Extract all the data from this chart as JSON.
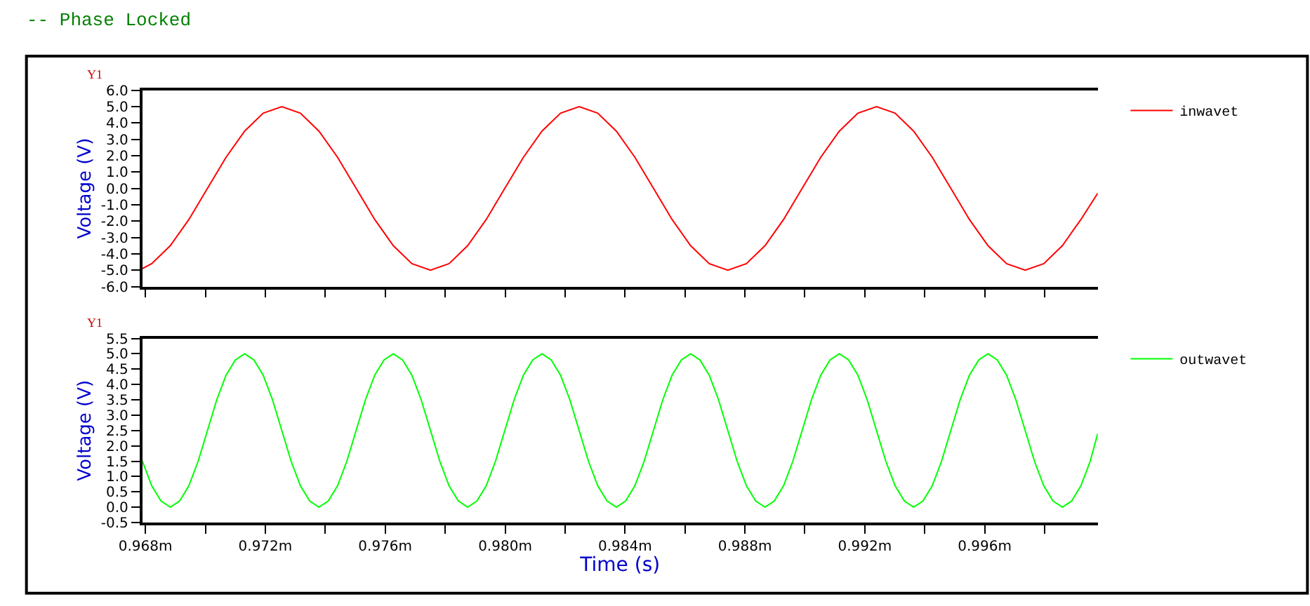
{
  "chart_data": [
    {
      "type": "line",
      "title": "-- Phase Locked",
      "ylabel": "Voltage (V)",
      "annotations": [
        "Y1"
      ],
      "series": [
        {
          "name": "inwavet",
          "color": "#ff0000",
          "x": [
            0.9679,
            0.96821,
            0.96883,
            0.96945,
            0.97007,
            0.97069,
            0.97131,
            0.97193,
            0.97255,
            0.97317,
            0.97379,
            0.97441,
            0.97503,
            0.97565,
            0.97627,
            0.97689,
            0.97751,
            0.97813,
            0.97875,
            0.97937,
            0.97999,
            0.98061,
            0.98123,
            0.98185,
            0.98247,
            0.98309,
            0.98371,
            0.98433,
            0.98495,
            0.98557,
            0.98619,
            0.98681,
            0.98743,
            0.98805,
            0.98867,
            0.98929,
            0.98991,
            0.99053,
            0.99115,
            0.99177,
            0.99239,
            0.99301,
            0.99363,
            0.99425,
            0.99487,
            0.99549,
            0.99611,
            0.99673,
            0.99735,
            0.99797,
            0.99859,
            0.99921,
            0.99977
          ],
          "values": [
            -4.9,
            -4.6,
            -3.5,
            -1.9,
            0,
            1.9,
            3.5,
            4.6,
            5,
            4.6,
            3.5,
            1.9,
            0,
            -1.9,
            -3.5,
            -4.6,
            -5,
            -4.6,
            -3.5,
            -1.9,
            0,
            1.9,
            3.5,
            4.6,
            5,
            4.6,
            3.5,
            1.9,
            0,
            -1.9,
            -3.5,
            -4.6,
            -5,
            -4.6,
            -3.5,
            -1.9,
            0,
            1.9,
            3.5,
            4.6,
            5,
            4.6,
            3.5,
            1.9,
            0,
            -1.9,
            -3.5,
            -4.6,
            -5,
            -4.6,
            -3.5,
            -1.9,
            -0.3
          ]
        }
      ],
      "xlim": [
        0.9679,
        0.99977
      ],
      "xticks": [
        {
          "value": 0.968,
          "label": null
        },
        {
          "value": 0.97,
          "label": null
        },
        {
          "value": 0.972,
          "label": null
        },
        {
          "value": 0.974,
          "label": null
        },
        {
          "value": 0.976,
          "label": null
        },
        {
          "value": 0.978,
          "label": null
        },
        {
          "value": 0.98,
          "label": null
        },
        {
          "value": 0.982,
          "label": null
        },
        {
          "value": 0.984,
          "label": null
        },
        {
          "value": 0.986,
          "label": null
        },
        {
          "value": 0.988,
          "label": null
        },
        {
          "value": 0.99,
          "label": null
        },
        {
          "value": 0.992,
          "label": null
        },
        {
          "value": 0.994,
          "label": null
        },
        {
          "value": 0.996,
          "label": null
        },
        {
          "value": 0.998,
          "label": null
        }
      ],
      "ylim": [
        -6,
        6
      ],
      "yticks": [
        {
          "value": 6,
          "label": "6.0"
        },
        {
          "value": 5,
          "label": "5.0"
        },
        {
          "value": 4,
          "label": "4.0"
        },
        {
          "value": 3,
          "label": "3.0"
        },
        {
          "value": 2,
          "label": "2.0"
        },
        {
          "value": 1,
          "label": "1.0"
        },
        {
          "value": 0,
          "label": "0.0"
        },
        {
          "value": -1,
          "label": "-1.0"
        },
        {
          "value": -2,
          "label": "-2.0"
        },
        {
          "value": -3,
          "label": "-3.0"
        },
        {
          "value": -4,
          "label": "-4.0"
        },
        {
          "value": -5,
          "label": "-5.0"
        },
        {
          "value": -6,
          "label": "-6.0"
        }
      ],
      "tick_labels": "y",
      "legend": "right",
      "marker": "none",
      "line_style": "solid"
    },
    {
      "type": "line",
      "xlabel": "Time (s)",
      "ylabel": "Voltage (V)",
      "annotations": [
        "Y1"
      ],
      "series": [
        {
          "name": "outwavet",
          "color": "#00ff00",
          "x": [
            0.9679,
            0.96821,
            0.96852,
            0.96883,
            0.96914,
            0.96945,
            0.96976,
            0.97007,
            0.97038,
            0.97069,
            0.971,
            0.97131,
            0.97162,
            0.97193,
            0.97224,
            0.97255,
            0.97286,
            0.97317,
            0.97348,
            0.97379,
            0.9741,
            0.97441,
            0.97472,
            0.97503,
            0.97534,
            0.97565,
            0.97596,
            0.97627,
            0.97658,
            0.97689,
            0.9772,
            0.97751,
            0.97782,
            0.97813,
            0.97844,
            0.97875,
            0.97906,
            0.97937,
            0.97968,
            0.97999,
            0.9803,
            0.98061,
            0.98092,
            0.98123,
            0.98154,
            0.98185,
            0.98216,
            0.98247,
            0.98278,
            0.98309,
            0.9834,
            0.98371,
            0.98402,
            0.98433,
            0.98464,
            0.98495,
            0.98526,
            0.98557,
            0.98588,
            0.98619,
            0.9865,
            0.98681,
            0.98712,
            0.98743,
            0.98774,
            0.98805,
            0.98836,
            0.98867,
            0.98898,
            0.98929,
            0.9896,
            0.98991,
            0.99022,
            0.99053,
            0.99084,
            0.99115,
            0.99146,
            0.99177,
            0.99208,
            0.99239,
            0.9927,
            0.99301,
            0.99332,
            0.99363,
            0.99394,
            0.99425,
            0.99456,
            0.99487,
            0.99518,
            0.99549,
            0.9958,
            0.99611,
            0.99642,
            0.99673,
            0.99704,
            0.99735,
            0.99766,
            0.99797,
            0.99828,
            0.99859,
            0.9989,
            0.99921,
            0.99952,
            0.99977
          ],
          "values": [
            1.5,
            0.7,
            0.2,
            0,
            0.2,
            0.7,
            1.5,
            2.5,
            3.5,
            4.3,
            4.8,
            5,
            4.8,
            4.3,
            3.5,
            2.5,
            1.5,
            0.7,
            0.2,
            0,
            0.2,
            0.7,
            1.5,
            2.5,
            3.5,
            4.3,
            4.8,
            5,
            4.8,
            4.3,
            3.5,
            2.5,
            1.5,
            0.7,
            0.2,
            0,
            0.2,
            0.7,
            1.5,
            2.5,
            3.5,
            4.3,
            4.8,
            5,
            4.8,
            4.3,
            3.5,
            2.5,
            1.5,
            0.7,
            0.2,
            0,
            0.2,
            0.7,
            1.5,
            2.5,
            3.5,
            4.3,
            4.8,
            5,
            4.8,
            4.3,
            3.5,
            2.5,
            1.5,
            0.7,
            0.2,
            0,
            0.2,
            0.7,
            1.5,
            2.5,
            3.5,
            4.3,
            4.8,
            5,
            4.8,
            4.3,
            3.5,
            2.5,
            1.5,
            0.7,
            0.2,
            0,
            0.2,
            0.7,
            1.5,
            2.5,
            3.5,
            4.3,
            4.8,
            5,
            4.8,
            4.3,
            3.5,
            2.5,
            1.5,
            0.7,
            0.2,
            0,
            0.2,
            0.7,
            1.5,
            2.4
          ]
        }
      ],
      "xlim": [
        0.9679,
        0.99977
      ],
      "xticks": [
        {
          "value": 0.968,
          "label": "0.968m"
        },
        {
          "value": 0.97,
          "label": null
        },
        {
          "value": 0.972,
          "label": "0.972m"
        },
        {
          "value": 0.974,
          "label": null
        },
        {
          "value": 0.976,
          "label": "0.976m"
        },
        {
          "value": 0.978,
          "label": null
        },
        {
          "value": 0.98,
          "label": "0.980m"
        },
        {
          "value": 0.982,
          "label": null
        },
        {
          "value": 0.984,
          "label": "0.984m"
        },
        {
          "value": 0.986,
          "label": null
        },
        {
          "value": 0.988,
          "label": "0.988m"
        },
        {
          "value": 0.99,
          "label": null
        },
        {
          "value": 0.992,
          "label": "0.992m"
        },
        {
          "value": 0.994,
          "label": null
        },
        {
          "value": 0.996,
          "label": "0.996m"
        },
        {
          "value": 0.998,
          "label": null
        }
      ],
      "ylim": [
        -0.5,
        5.5
      ],
      "yticks": [
        {
          "value": 5.5,
          "label": "5.5"
        },
        {
          "value": 5,
          "label": "5.0"
        },
        {
          "value": 4.5,
          "label": "4.5"
        },
        {
          "value": 4,
          "label": "4.0"
        },
        {
          "value": 3.5,
          "label": "3.5"
        },
        {
          "value": 3,
          "label": "3.0"
        },
        {
          "value": 2.5,
          "label": "2.5"
        },
        {
          "value": 2,
          "label": "2.0"
        },
        {
          "value": 1.5,
          "label": "1.5"
        },
        {
          "value": 1,
          "label": "1.0"
        },
        {
          "value": 0.5,
          "label": "0.5"
        },
        {
          "value": 0,
          "label": "0.0"
        },
        {
          "value": -0.5,
          "label": "-0.5"
        }
      ],
      "legend": "right",
      "marker": "none",
      "line_style": "solid"
    }
  ]
}
